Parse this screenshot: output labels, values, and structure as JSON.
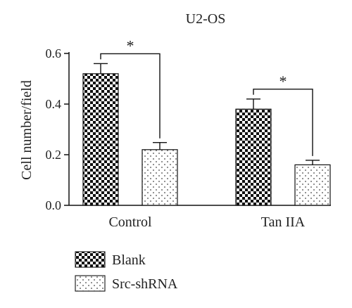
{
  "chart_data": {
    "type": "bar",
    "title": "U2-OS",
    "xlabel": "",
    "ylabel": "Cell number/field",
    "categories": [
      "Control",
      "Tan IIA"
    ],
    "ylim": [
      0,
      0.6
    ],
    "yticks": [
      "0.0",
      "0.2",
      "0.4",
      "0.6"
    ],
    "series": [
      {
        "name": "Blank",
        "values": [
          0.52,
          0.38
        ],
        "errors": [
          0.04,
          0.04
        ],
        "pattern": "checker"
      },
      {
        "name": "Src-shRNA",
        "values": [
          0.22,
          0.16
        ],
        "errors": [
          0.028,
          0.018
        ],
        "pattern": "dots"
      }
    ],
    "significance": [
      {
        "category": "Control",
        "label": "*"
      },
      {
        "category": "Tan IIA",
        "label": "*"
      }
    ],
    "legend_position": "bottom-left",
    "grid": false
  }
}
